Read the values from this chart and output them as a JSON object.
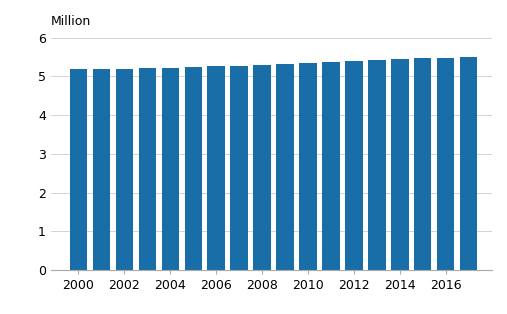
{
  "years": [
    2000,
    2001,
    2002,
    2003,
    2004,
    2005,
    2006,
    2007,
    2008,
    2009,
    2010,
    2011,
    2012,
    2013,
    2014,
    2015,
    2016,
    2017
  ],
  "values": [
    5.181,
    5.188,
    5.201,
    5.207,
    5.22,
    5.237,
    5.256,
    5.277,
    5.3,
    5.326,
    5.351,
    5.375,
    5.401,
    5.426,
    5.451,
    5.472,
    5.487,
    5.503
  ],
  "bar_color": "#1a6ea8",
  "ylabel_text": "Million",
  "ylim": [
    0,
    6
  ],
  "yticks": [
    0,
    1,
    2,
    3,
    4,
    5,
    6
  ],
  "grid_color": "#cccccc",
  "background_color": "#ffffff",
  "bar_width": 0.75
}
